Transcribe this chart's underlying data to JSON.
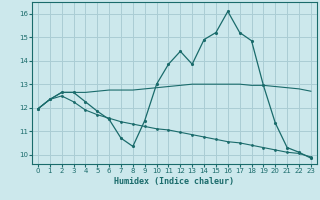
{
  "xlabel": "Humidex (Indice chaleur)",
  "background_color": "#cce8ec",
  "grid_color": "#aacdd4",
  "line_color": "#1a6b6b",
  "xlim": [
    -0.5,
    23.5
  ],
  "ylim": [
    9.6,
    16.5
  ],
  "yticks": [
    10,
    11,
    12,
    13,
    14,
    15,
    16
  ],
  "xticks": [
    0,
    1,
    2,
    3,
    4,
    5,
    6,
    7,
    8,
    9,
    10,
    11,
    12,
    13,
    14,
    15,
    16,
    17,
    18,
    19,
    20,
    21,
    22,
    23
  ],
  "line_main": {
    "x": [
      0,
      1,
      2,
      3,
      4,
      5,
      6,
      7,
      8,
      9,
      10,
      11,
      12,
      13,
      14,
      15,
      16,
      17,
      18,
      19,
      20,
      21,
      22,
      23
    ],
    "y": [
      11.95,
      12.35,
      12.65,
      12.65,
      12.25,
      11.85,
      11.5,
      10.7,
      10.35,
      11.45,
      13.0,
      13.85,
      14.4,
      13.85,
      14.9,
      15.2,
      16.1,
      15.2,
      14.85,
      12.95,
      11.35,
      10.3,
      10.1,
      9.85
    ]
  },
  "line_upper": {
    "x": [
      0,
      1,
      2,
      3,
      4,
      5,
      6,
      7,
      8,
      9,
      10,
      11,
      12,
      13,
      14,
      15,
      16,
      17,
      18,
      19,
      20,
      21,
      22,
      23
    ],
    "y": [
      11.95,
      12.35,
      12.65,
      12.65,
      12.65,
      12.7,
      12.75,
      12.75,
      12.75,
      12.8,
      12.85,
      12.9,
      12.95,
      13.0,
      13.0,
      13.0,
      13.0,
      13.0,
      12.95,
      12.95,
      12.9,
      12.85,
      12.8,
      12.7
    ]
  },
  "line_lower": {
    "x": [
      0,
      1,
      2,
      3,
      4,
      5,
      6,
      7,
      8,
      9,
      10,
      11,
      12,
      13,
      14,
      15,
      16,
      17,
      18,
      19,
      20,
      21,
      22,
      23
    ],
    "y": [
      11.95,
      12.35,
      12.5,
      12.25,
      11.9,
      11.7,
      11.55,
      11.4,
      11.3,
      11.2,
      11.1,
      11.05,
      10.95,
      10.85,
      10.75,
      10.65,
      10.55,
      10.5,
      10.4,
      10.3,
      10.2,
      10.1,
      10.05,
      9.9
    ]
  }
}
